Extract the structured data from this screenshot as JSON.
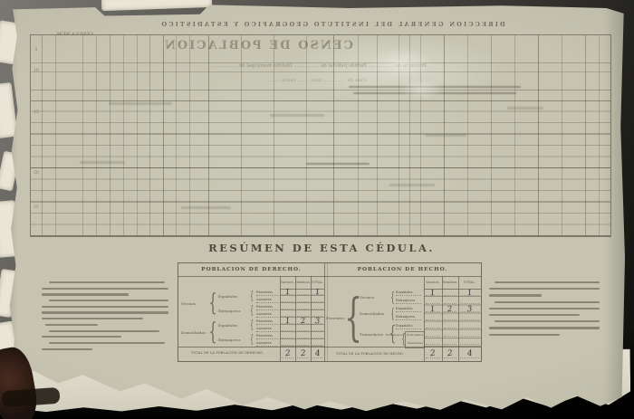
{
  "bleedthrough": {
    "agency_line": "DIRECCION GENERAL DEL INSTITUTO GEOGRAFICO Y ESTADISTICO",
    "census_title": "CENSO DE POBLACION",
    "cedula_label": "CÉDULA NÚM.",
    "location_line": "Provincia de ................  Partido judicial de ................  Distrito municipal de ................",
    "address_line": "Calle de ................  núm. ........  cuarto ........",
    "margin_row_numbers": [
      "5",
      "10",
      "15",
      "20",
      "25"
    ]
  },
  "resumen": {
    "title": "RESÚMEN DE ESTA CÉDULA.",
    "col_headers": {
      "varones": "Varones.",
      "hembras": "Hembras.",
      "total": "TOTAL."
    },
    "derecho": {
      "header": "POBLACION DE DERECHO.",
      "group1": [
        "Vecinos",
        "Domiciliados"
      ],
      "group2": [
        "Españoles",
        "Extranjeros",
        "Españoles",
        "Extranjeros"
      ],
      "rows": [
        {
          "leaf": "Presentes",
          "v": "1",
          "h": "",
          "t": "1"
        },
        {
          "leaf": "Ausentes",
          "v": "",
          "h": "",
          "t": ""
        },
        {
          "leaf": "Presentes",
          "v": "",
          "h": "",
          "t": ""
        },
        {
          "leaf": "Ausentes",
          "v": "",
          "h": "",
          "t": ""
        },
        {
          "leaf": "Presentes",
          "v": "1",
          "h": "2",
          "t": "3"
        },
        {
          "leaf": "Ausentes",
          "v": "",
          "h": "",
          "t": ""
        },
        {
          "leaf": "Presentes",
          "v": "",
          "h": "",
          "t": ""
        },
        {
          "leaf": "Ausentes",
          "v": "",
          "h": "",
          "t": ""
        }
      ],
      "total_label": "Total de la población de derecho",
      "total": {
        "v": "2",
        "h": "2",
        "t": "4"
      }
    },
    "hecho": {
      "header": "POBLACION DE HECHO.",
      "big_label": "Presentes",
      "groups": [
        "Vecinos",
        "Domiciliados",
        "Transeúntes"
      ],
      "nested_label": "Extranjeros",
      "rows": [
        {
          "leaf": "Españoles",
          "v": "1",
          "h": "",
          "t": "1"
        },
        {
          "leaf": "Extranjeros",
          "v": "",
          "h": "",
          "t": ""
        },
        {
          "leaf": "Españoles",
          "v": "1",
          "h": "2",
          "t": "3"
        },
        {
          "leaf": "Extranjeros",
          "v": "",
          "h": "",
          "t": ""
        },
        {
          "leaf": "Españoles",
          "v": "",
          "h": "",
          "t": ""
        },
        {
          "leaf": "Domiciliados",
          "v": "",
          "h": "",
          "t": ""
        },
        {
          "leaf": "Transeúntes",
          "v": "",
          "h": "",
          "t": ""
        }
      ],
      "total_label": "Total de la población de hecho",
      "total": {
        "v": "2",
        "h": "2",
        "t": "4"
      }
    }
  }
}
